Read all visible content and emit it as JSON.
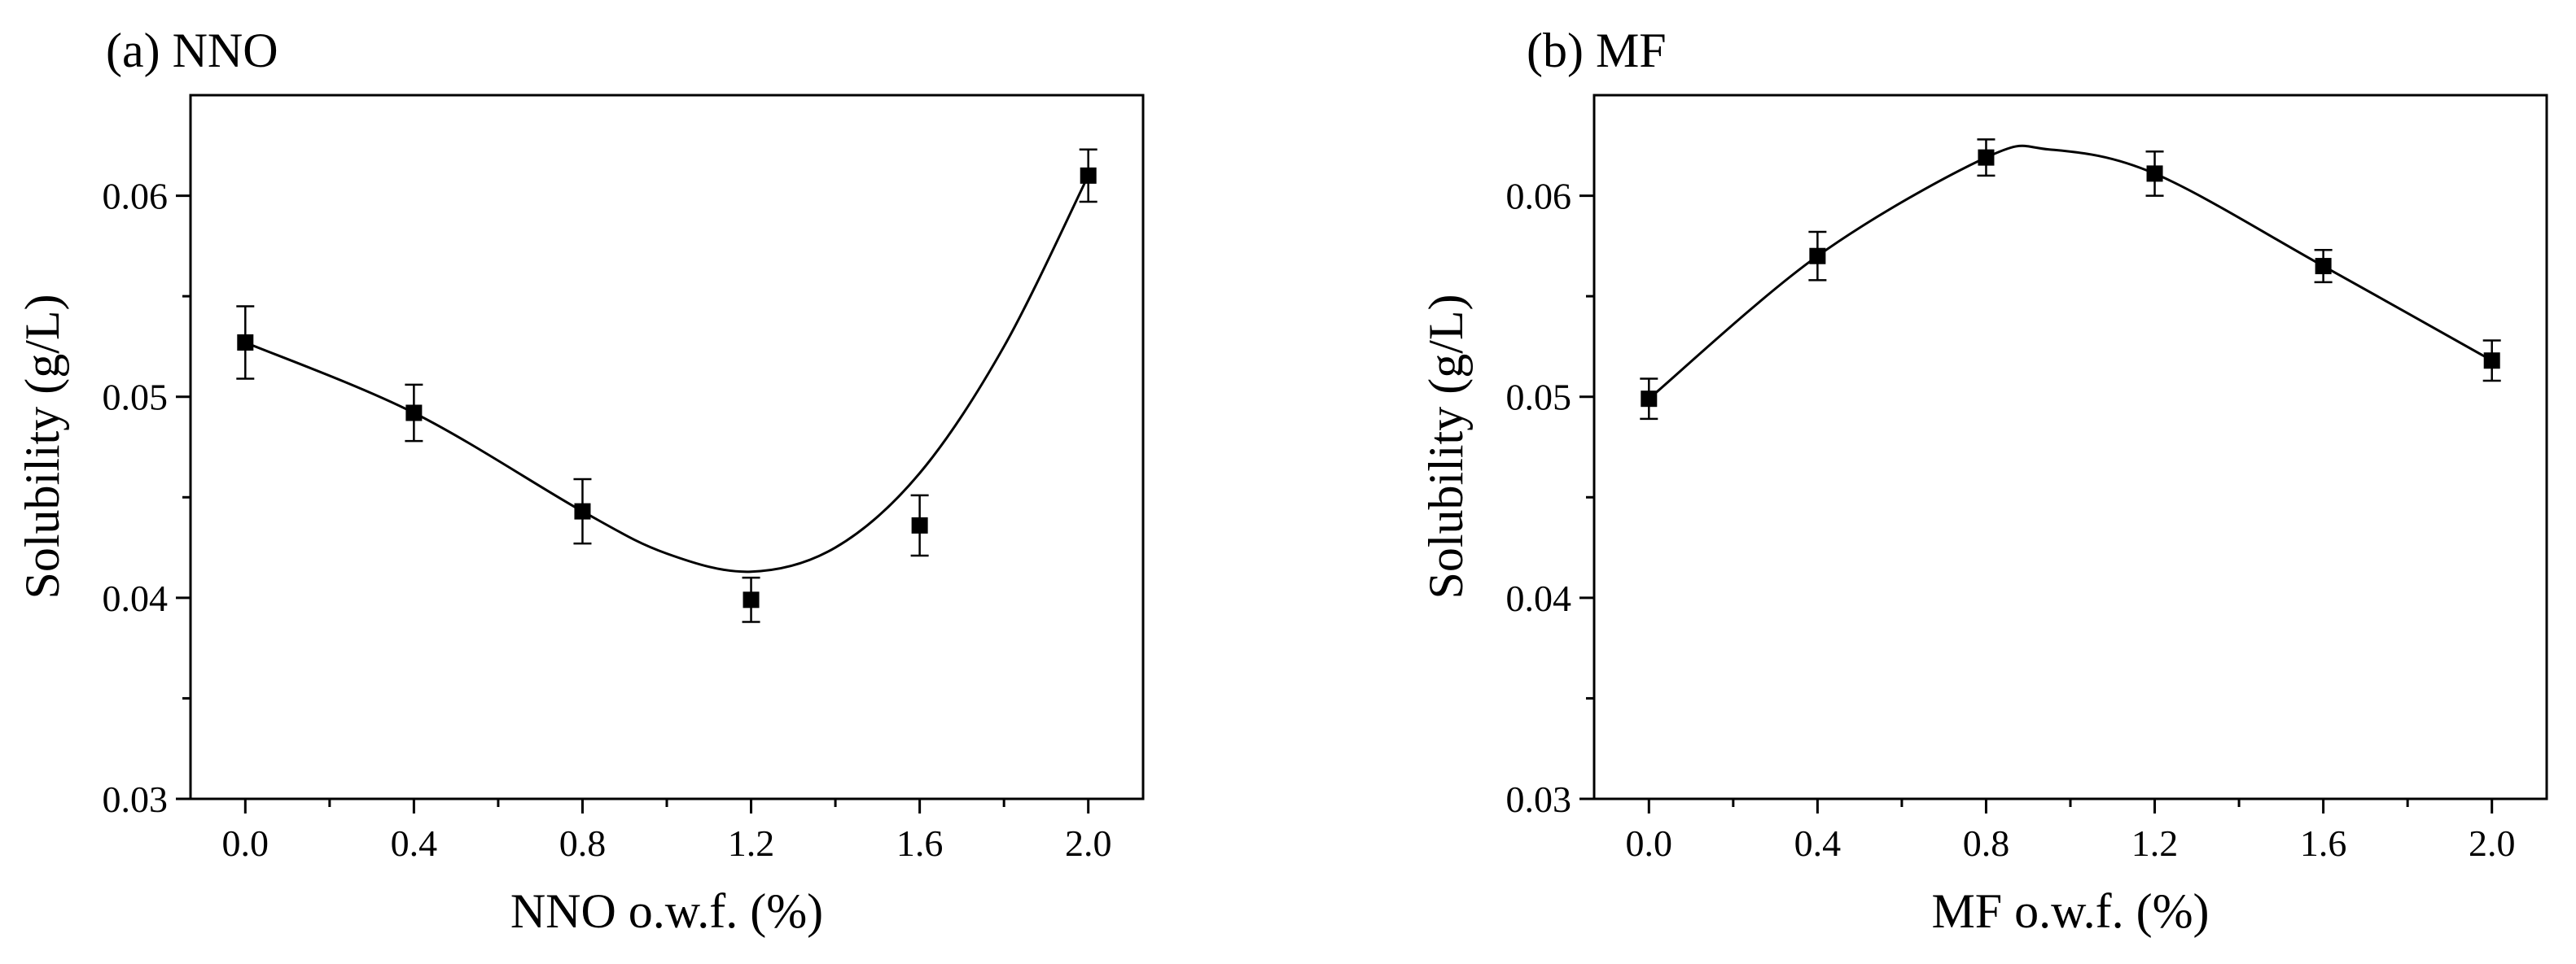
{
  "chart_data": [
    {
      "type": "scatter",
      "panel": "(a)",
      "title": "(a) NNO",
      "xlabel": "NNO o.w.f. (%)",
      "ylabel": "Solubility (g/L)",
      "xlim": [
        -0.13,
        2.13
      ],
      "ylim": [
        0.03,
        0.065
      ],
      "x_ticks": [
        "0.0",
        "0.4",
        "0.8",
        "1.2",
        "1.6",
        "2.0"
      ],
      "y_ticks": [
        "0.03",
        "0.04",
        "0.05",
        "0.06"
      ],
      "series": [
        {
          "name": "NNO",
          "marker": "square",
          "fit": "smooth curve",
          "x": [
            0.0,
            0.4,
            0.8,
            1.2,
            1.6,
            2.0
          ],
          "y": [
            0.0527,
            0.0492,
            0.0443,
            0.0399,
            0.0436,
            0.061
          ],
          "error": [
            0.0018,
            0.0014,
            0.0016,
            0.0011,
            0.0015,
            0.0013
          ],
          "fit_curve": {
            "x": [
              0.0,
              0.4,
              0.8,
              1.0,
              1.2,
              1.4,
              1.6,
              1.8,
              2.0
            ],
            "y": [
              0.0527,
              0.0492,
              0.0443,
              0.0422,
              0.0413,
              0.0425,
              0.0462,
              0.0525,
              0.061
            ]
          }
        }
      ]
    },
    {
      "type": "scatter",
      "panel": "(b)",
      "title": "(b) MF",
      "xlabel": "MF o.w.f. (%)",
      "ylabel": "Solubility (g/L)",
      "xlim": [
        -0.13,
        2.13
      ],
      "ylim": [
        0.03,
        0.065
      ],
      "x_ticks": [
        "0.0",
        "0.4",
        "0.8",
        "1.2",
        "1.6",
        "2.0"
      ],
      "y_ticks": [
        "0.03",
        "0.04",
        "0.05",
        "0.06"
      ],
      "series": [
        {
          "name": "MF",
          "marker": "square",
          "fit": "smooth curve",
          "x": [
            0.0,
            0.4,
            0.8,
            1.2,
            1.6,
            2.0
          ],
          "y": [
            0.0499,
            0.057,
            0.0619,
            0.0611,
            0.0565,
            0.0518
          ],
          "error": [
            0.001,
            0.0012,
            0.0009,
            0.0011,
            0.0008,
            0.001
          ],
          "fit_curve": {
            "x": [
              0.0,
              0.4,
              0.8,
              0.95,
              1.2,
              1.6,
              2.0
            ],
            "y": [
              0.0499,
              0.057,
              0.0619,
              0.0623,
              0.0611,
              0.0565,
              0.0518
            ]
          }
        }
      ]
    }
  ]
}
